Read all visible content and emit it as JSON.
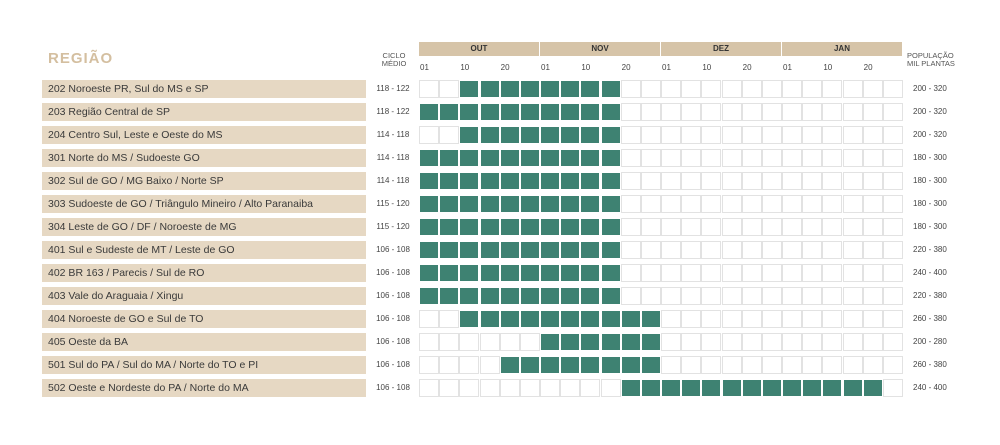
{
  "header": {
    "title": "REGIÃO",
    "cycle_line1": "CICLO",
    "cycle_line2": "MÉDIO",
    "pop_line1": "POPULAÇÃO",
    "pop_line2": "MIL PLANTAS"
  },
  "colors": {
    "active": "#3e8272",
    "inactive": "#ffffff",
    "month_band": "#d6c4a8",
    "region_band": "#e6d8c3",
    "title": "#d4bfa0"
  },
  "chart_data": {
    "type": "table",
    "months": [
      "OUT",
      "NOV",
      "DEZ",
      "JAN"
    ],
    "day_ticks": [
      "01",
      "10",
      "20",
      "01",
      "10",
      "20",
      "01",
      "10",
      "20",
      "01",
      "10",
      "20"
    ],
    "periods_per_month": 6,
    "rows": [
      {
        "region": "202 Noroeste PR, Sul do MS e SP",
        "cycle": "118 - 122",
        "population": "200 - 320",
        "active_periods": [
          2,
          9
        ]
      },
      {
        "region": "203 Região Central de SP",
        "cycle": "118 - 122",
        "population": "200 - 320",
        "active_periods": [
          0,
          9
        ]
      },
      {
        "region": "204 Centro Sul, Leste e Oeste do MS",
        "cycle": "114 - 118",
        "population": "200 - 320",
        "active_periods": [
          2,
          9
        ]
      },
      {
        "region": "301 Norte do MS / Sudoeste GO",
        "cycle": "114 - 118",
        "population": "180 - 300",
        "active_periods": [
          0,
          9
        ]
      },
      {
        "region": "302 Sul de GO / MG Baixo / Norte SP",
        "cycle": "114 - 118",
        "population": "180 - 300",
        "active_periods": [
          0,
          9
        ]
      },
      {
        "region": "303 Sudoeste de GO / Triângulo Mineiro / Alto Paranaiba",
        "cycle": "115 - 120",
        "population": "180 - 300",
        "active_periods": [
          0,
          9
        ]
      },
      {
        "region": "304 Leste de GO / DF / Noroeste de MG",
        "cycle": "115 - 120",
        "population": "180 - 300",
        "active_periods": [
          0,
          9
        ]
      },
      {
        "region": "401 Sul e Sudeste de MT / Leste de GO",
        "cycle": "106 - 108",
        "population": "220 - 380",
        "active_periods": [
          0,
          9
        ]
      },
      {
        "region": "402 BR 163 / Parecis / Sul de RO",
        "cycle": "106 - 108",
        "population": "240 - 400",
        "active_periods": [
          0,
          9
        ]
      },
      {
        "region": "403 Vale do Araguaia / Xingu",
        "cycle": "106 - 108",
        "population": "220 - 380",
        "active_periods": [
          0,
          9
        ]
      },
      {
        "region": "404 Noroeste de GO e Sul de TO",
        "cycle": "106 - 108",
        "population": "260 - 380",
        "active_periods": [
          2,
          11
        ]
      },
      {
        "region": "405 Oeste da BA",
        "cycle": "106 - 108",
        "population": "200 - 280",
        "active_periods": [
          6,
          11
        ]
      },
      {
        "region": "501 Sul do PA / Sul do MA / Norte do TO e PI",
        "cycle": "106 - 108",
        "population": "260 - 380",
        "active_periods": [
          4,
          11
        ]
      },
      {
        "region": "502 Oeste e Nordeste do PA / Norte do MA",
        "cycle": "106 - 108",
        "population": "240 - 400",
        "active_periods": [
          10,
          22
        ]
      }
    ]
  }
}
